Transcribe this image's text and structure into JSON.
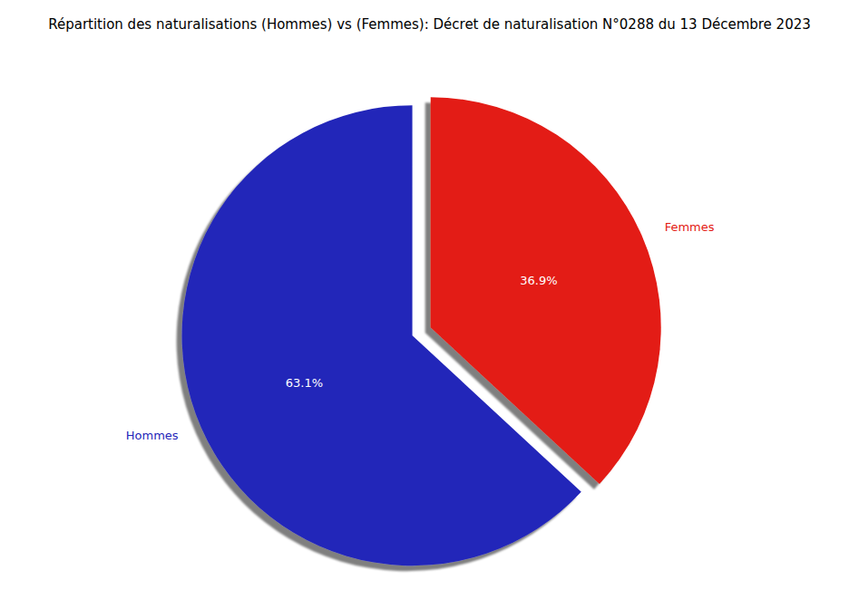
{
  "chart_data": {
    "type": "pie",
    "title": "Répartition des naturalisations (Hommes) vs (Femmes): Décret de naturalisation N°0288 du 13 Décembre 2023",
    "categories": [
      "Hommes",
      "Femmes"
    ],
    "values": [
      63.1,
      36.9
    ],
    "value_labels": [
      "63.1%",
      "36.9%"
    ],
    "colors": [
      "#2426b9",
      "#e31a13"
    ],
    "data_labels": true
  }
}
